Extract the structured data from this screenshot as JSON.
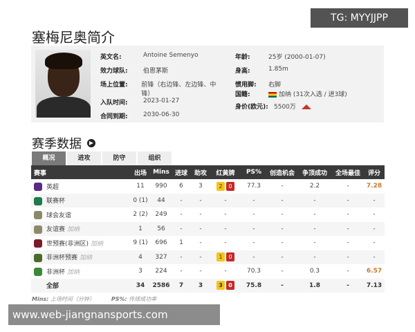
{
  "watermarks": {
    "top": "TG: MYYJJPP",
    "bottom": "www.web-jiangnansports.com"
  },
  "title": "塞梅尼奥简介",
  "profile": {
    "left": [
      {
        "k": "英文名:",
        "v": "Antoine Semenyo"
      },
      {
        "k": "效力球队:",
        "v": "伯恩茅斯"
      },
      {
        "k": "场上位置:",
        "v": "前锋（右边锋、左边锋、中锋）"
      },
      {
        "k": "入队时间:",
        "v": "2023-01-27"
      },
      {
        "k": "合同到期:",
        "v": "2030-06-30"
      }
    ],
    "right": [
      {
        "k": "年龄:",
        "v": "25岁 (2000-01-07)"
      },
      {
        "k": "身高:",
        "v": "1.85m"
      },
      {
        "k": "惯用脚:",
        "v": "右脚"
      },
      {
        "k": "国籍:",
        "v": "加纳 (31次入选 / 进3球)"
      },
      {
        "k": "身价(欧元):",
        "v": "5500万"
      }
    ],
    "value_trend": "up"
  },
  "season": {
    "title": "赛季数据",
    "tabs": [
      "概况",
      "进攻",
      "防守",
      "组织"
    ],
    "headers": [
      "赛事",
      "出场",
      "Mins",
      "进球",
      "助攻",
      "红黄牌",
      "PS%",
      "创造机会",
      "争顶成功",
      "全场最佳",
      "评分"
    ],
    "rows": [
      {
        "name": "英超",
        "sub": "",
        "apps": "11",
        "mins": "990",
        "g": "6",
        "a": "3",
        "y": "2",
        "r": "0",
        "ps": "77.3",
        "cc": "-",
        "aw": "2.2",
        "motm": "-",
        "rating": "7.28",
        "icon": "#5b2a86"
      },
      {
        "name": "联赛杯",
        "sub": "",
        "apps": "0 (1)",
        "mins": "44",
        "g": "-",
        "a": "-",
        "y": "",
        "r": "",
        "ps": "-",
        "cc": "-",
        "aw": "-",
        "motm": "-",
        "rating": "-",
        "icon": "#1d7a4a"
      },
      {
        "name": "球会友谊",
        "sub": "",
        "apps": "2 (2)",
        "mins": "249",
        "g": "-",
        "a": "-",
        "y": "",
        "r": "",
        "ps": "-",
        "cc": "-",
        "aw": "-",
        "motm": "-",
        "rating": "-",
        "icon": "#8a8a6a"
      },
      {
        "name": "友谊赛",
        "sub": "加纳",
        "apps": "1",
        "mins": "56",
        "g": "-",
        "a": "-",
        "y": "",
        "r": "",
        "ps": "-",
        "cc": "-",
        "aw": "-",
        "motm": "-",
        "rating": "-",
        "icon": "#8a8a6a"
      },
      {
        "name": "世预赛(非洲区)",
        "sub": "加纳",
        "apps": "9 (1)",
        "mins": "696",
        "g": "1",
        "a": "-",
        "y": "",
        "r": "",
        "ps": "-",
        "cc": "-",
        "aw": "-",
        "motm": "-",
        "rating": "-",
        "icon": "#7a1a2a"
      },
      {
        "name": "非洲杯预赛",
        "sub": "加纳",
        "apps": "4",
        "mins": "327",
        "g": "-",
        "a": "-",
        "y": "1",
        "r": "0",
        "ps": "-",
        "cc": "-",
        "aw": "-",
        "motm": "-",
        "rating": "-",
        "icon": "#4a6a2a"
      },
      {
        "name": "非洲杯",
        "sub": "加纳",
        "apps": "3",
        "mins": "224",
        "g": "-",
        "a": "-",
        "y": "",
        "r": "",
        "ps": "70.3",
        "cc": "-",
        "aw": "0.3",
        "motm": "-",
        "rating": "6.57",
        "icon": "#3a8a3a"
      },
      {
        "name": "全部",
        "sub": "",
        "apps": "34",
        "mins": "2586",
        "g": "7",
        "a": "3",
        "y": "3",
        "r": "0",
        "ps": "75.8",
        "cc": "-",
        "aw": "1.8",
        "motm": "-",
        "rating": "7.13",
        "icon": ""
      }
    ],
    "notes": [
      {
        "k": "Mins:",
        "v": "上场时间（分钟）"
      },
      {
        "k": "PS%:",
        "v": "传球成功率"
      }
    ]
  }
}
